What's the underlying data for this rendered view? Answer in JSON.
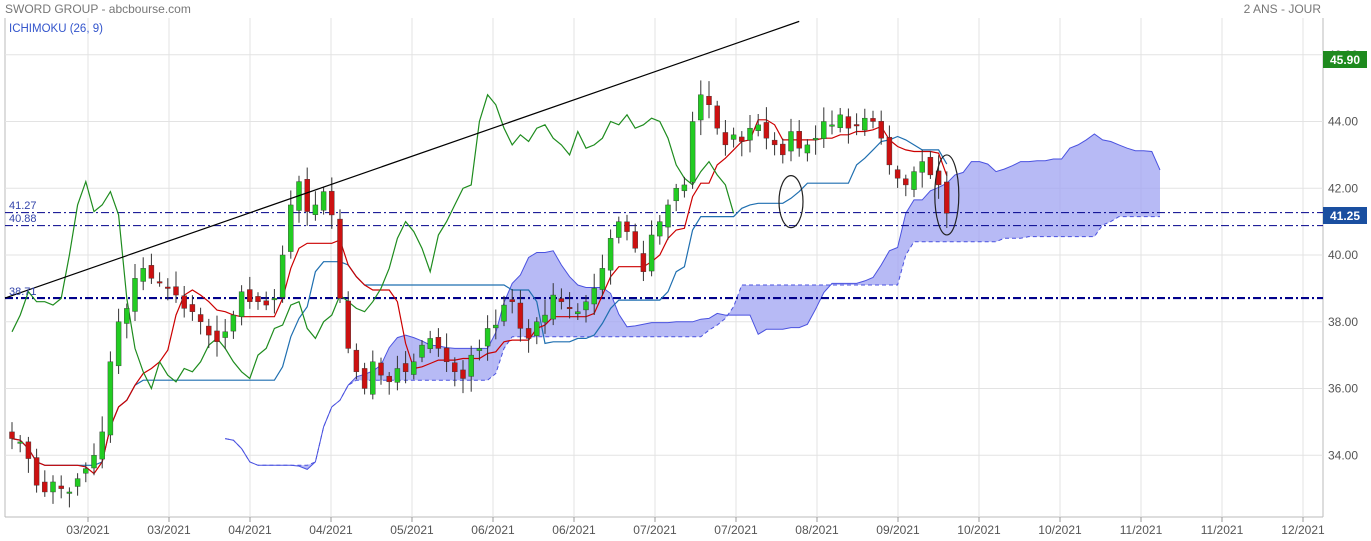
{
  "header": {
    "title": "SWORD GROUP - abcbourse.com",
    "period": "2 ANS - JOUR",
    "indicator": "ICHIMOKU (26, 9)"
  },
  "colors": {
    "up": "#22cc22",
    "down": "#cc1111",
    "tenkan": "#cc0000",
    "kijun": "#1f6fb0",
    "chikou": "#1e8c1e",
    "cloud": "#9fa3f2",
    "cloud_edge": "#4a52e0",
    "support": "#00008b",
    "trendline": "#000000",
    "last_badge": "#1e8a1e",
    "level_badge": "#1a4fa0"
  },
  "badges": {
    "top": "45.90",
    "last": "41.25"
  },
  "level_labels": {
    "upper": "41.27",
    "lower": "40.88",
    "support": "38.71"
  },
  "chart_data": {
    "type": "candlestick",
    "y_ticks": [
      "46.00",
      "44.00",
      "42.00",
      "40.00",
      "38.00",
      "36.00",
      "34.00"
    ],
    "ylim": [
      32.0,
      46.5
    ],
    "x_ticks": [
      "03/2021",
      "03/2021",
      "04/2021",
      "04/2021",
      "05/2021",
      "06/2021",
      "06/2021",
      "07/2021",
      "07/2021",
      "08/2021",
      "09/2021",
      "10/2021",
      "10/2021",
      "11/2021",
      "11/2021",
      "12/2021"
    ],
    "grid": true,
    "horizontal_levels": [
      41.27,
      40.88,
      38.71
    ],
    "last_close": 41.25,
    "closes": [
      34.5,
      34.4,
      33.9,
      33.1,
      32.9,
      33.2,
      33.0,
      32.9,
      33.3,
      33.6,
      34.0,
      34.7,
      36.8,
      38.0,
      38.4,
      39.3,
      39.6,
      39.3,
      39.2,
      39.0,
      38.8,
      38.4,
      38.3,
      38.0,
      37.6,
      37.4,
      37.7,
      38.2,
      38.9,
      38.6,
      38.6,
      38.5,
      38.7,
      40.0,
      41.5,
      42.2,
      41.3,
      41.5,
      41.9,
      41.2,
      38.7,
      37.2,
      36.5,
      36.0,
      36.8,
      36.4,
      36.2,
      36.6,
      36.5,
      36.8,
      37.3,
      37.5,
      37.2,
      36.8,
      36.5,
      36.3,
      37.0,
      37.2,
      37.8,
      37.9,
      38.5,
      38.6,
      37.8,
      37.5,
      38.0,
      38.2,
      38.8,
      38.6,
      38.4,
      38.3,
      38.6,
      39.0,
      39.6,
      40.5,
      41.0,
      40.7,
      40.2,
      39.5,
      40.6,
      41.0,
      41.5,
      42.0,
      42.1,
      44.0,
      44.8,
      44.5,
      43.8,
      43.3,
      43.6,
      43.4,
      43.8,
      43.9,
      43.5,
      43.3,
      43.0,
      43.7,
      43.2,
      43.3,
      43.5,
      44.0,
      43.9,
      44.2,
      43.8,
      43.9,
      44.1,
      44.0,
      43.5,
      42.7,
      42.3,
      42.1,
      42.5,
      42.8,
      42.4,
      42.1,
      41.25
    ],
    "close_labels": [
      [
        "04/2021",
        42.1
      ],
      [
        "07/2021",
        45.9
      ],
      [
        "09/2021",
        44.5
      ],
      [
        "last",
        41.25
      ]
    ]
  }
}
